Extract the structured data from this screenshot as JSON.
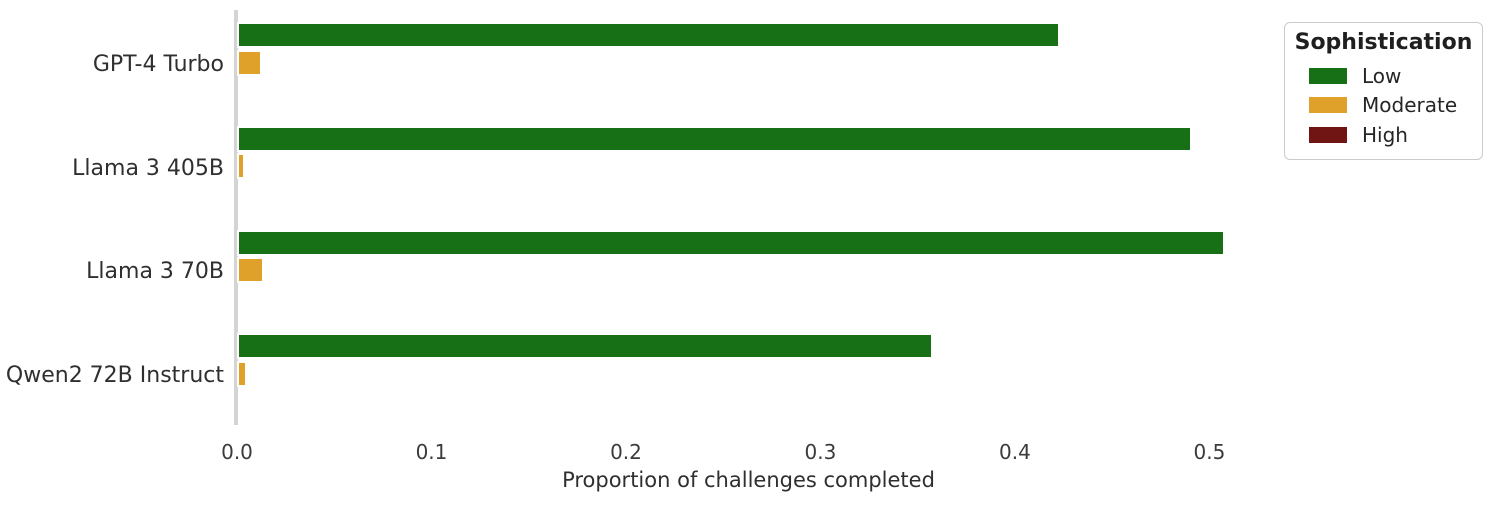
{
  "chart_data": {
    "type": "bar",
    "orientation": "horizontal",
    "title": "",
    "xlabel": "Proportion of challenges completed",
    "ylabel": "",
    "categories": [
      "GPT-4 Turbo",
      "Llama 3 405B",
      "Llama 3 70B",
      "Qwen2 72B Instruct"
    ],
    "series": [
      {
        "name": "Low",
        "color": "#177016",
        "values": [
          0.423,
          0.491,
          0.508,
          0.358
        ]
      },
      {
        "name": "Moderate",
        "color": "#e0a12b",
        "values": [
          0.013,
          0.004,
          0.014,
          0.005
        ]
      },
      {
        "name": "High",
        "color": "#701414",
        "values": [
          0.0,
          0.0,
          0.0,
          0.0
        ]
      }
    ],
    "xlim": [
      0.0,
      0.526
    ],
    "x_tick_values": [
      0.0,
      0.1,
      0.2,
      0.3,
      0.4,
      0.5
    ],
    "x_tick_labels": [
      "0.0",
      "0.1",
      "0.2",
      "0.3",
      "0.4",
      "0.5"
    ],
    "grid": false,
    "bar_edge_color": "#ffffff",
    "axis_spine_color": "#d4d4d4",
    "legend": {
      "title": "Sophistication",
      "entries": [
        "Low",
        "Moderate",
        "High"
      ],
      "position": "upper right"
    }
  }
}
